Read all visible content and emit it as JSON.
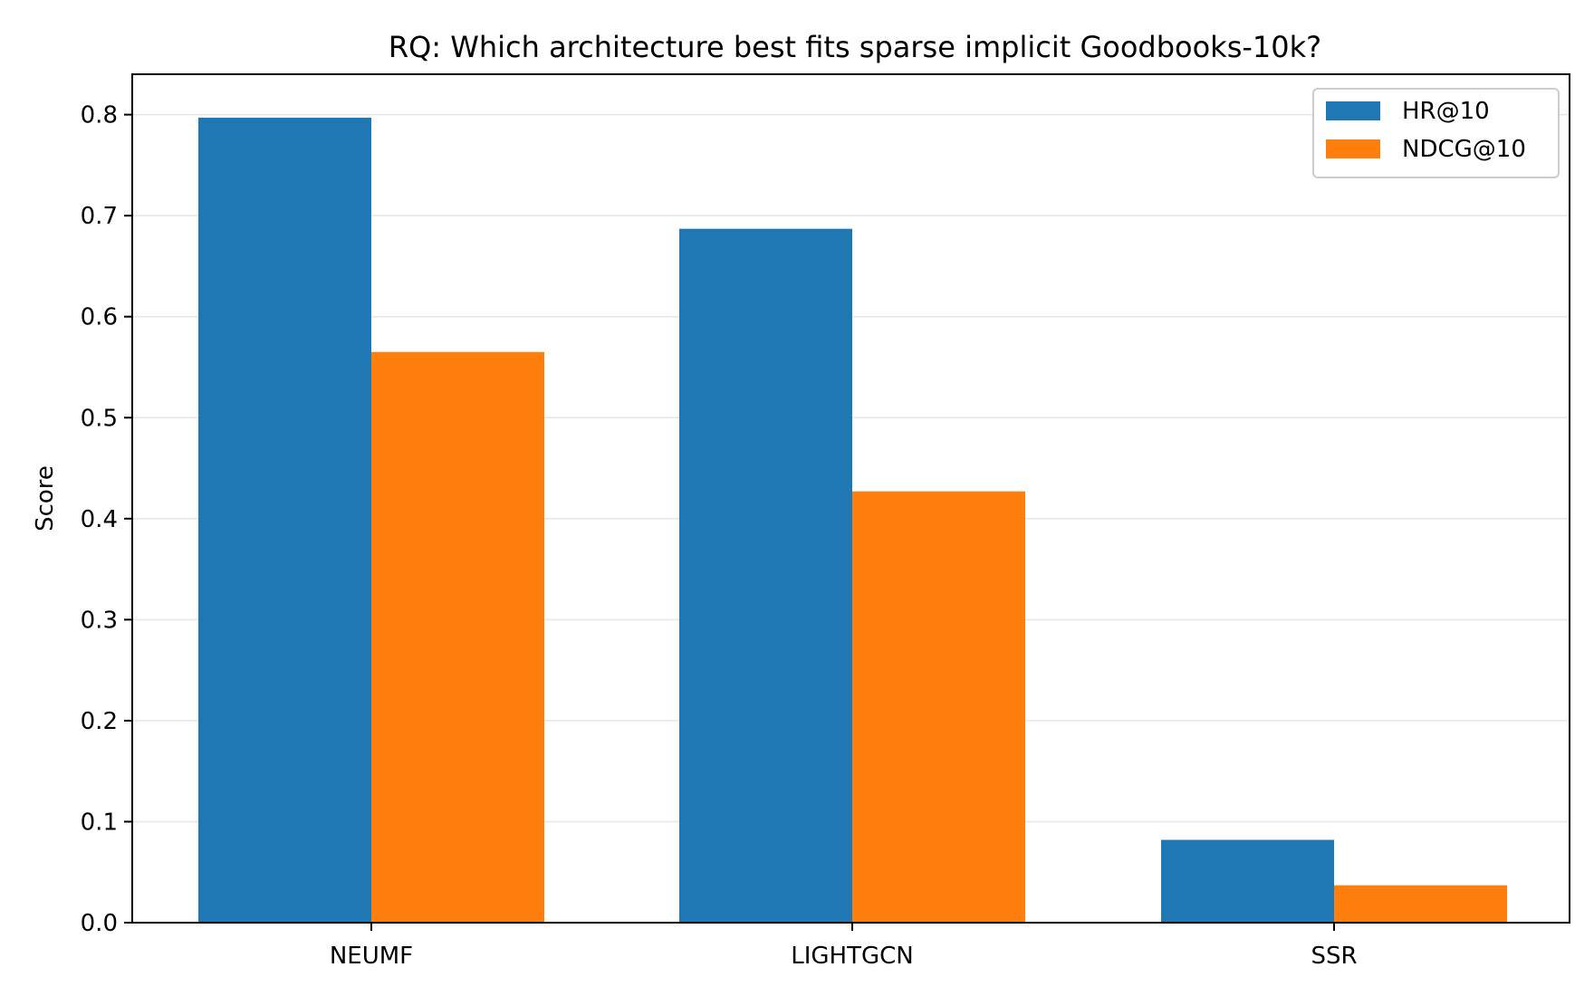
{
  "chart_data": {
    "type": "bar",
    "title": "RQ: Which architecture best fits sparse implicit Goodbooks-10k?",
    "xlabel": "",
    "ylabel": "Score",
    "categories": [
      "NEUMF",
      "LIGHTGCN",
      "SSR"
    ],
    "series": [
      {
        "name": "HR@10",
        "color": "#1f77b4",
        "values": [
          0.797,
          0.687,
          0.082
        ]
      },
      {
        "name": "NDCG@10",
        "color": "#ff7f0e",
        "values": [
          0.565,
          0.427,
          0.037
        ]
      }
    ],
    "ylim": [
      0,
      0.84
    ],
    "yticks": [
      "0.0",
      "0.1",
      "0.2",
      "0.3",
      "0.4",
      "0.5",
      "0.6",
      "0.7",
      "0.8"
    ],
    "grid": "horizontal",
    "legend_position": "top-right"
  }
}
